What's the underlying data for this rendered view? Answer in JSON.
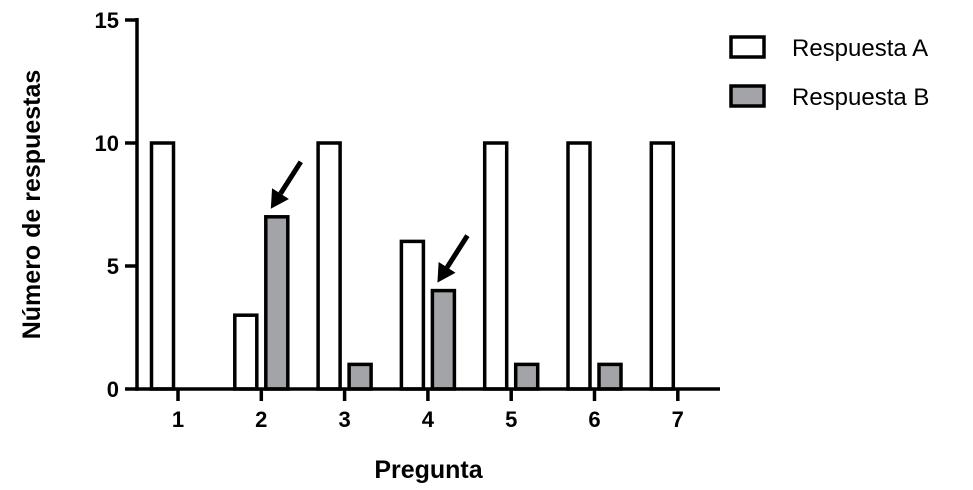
{
  "chart_data": {
    "type": "bar",
    "title": "",
    "xlabel": "Pregunta",
    "ylabel": "Número de respuestas",
    "categories": [
      "1",
      "2",
      "3",
      "4",
      "5",
      "6",
      "7"
    ],
    "series": [
      {
        "name": "Respuesta A",
        "color": "#ffffff",
        "values": [
          10,
          3,
          10,
          6,
          10,
          10,
          10
        ]
      },
      {
        "name": "Respuesta B",
        "color": "#a3a4a8",
        "values": [
          0,
          7,
          1,
          4,
          1,
          1,
          0
        ]
      }
    ],
    "ylim": [
      0,
      15
    ],
    "yticks": [
      "0",
      "5",
      "10",
      "15"
    ],
    "grid": false,
    "legend_position": "top-right",
    "annotations": [
      {
        "type": "arrow",
        "category": "2",
        "series": "Respuesta B"
      },
      {
        "type": "arrow",
        "category": "4",
        "series": "Respuesta B"
      }
    ]
  }
}
